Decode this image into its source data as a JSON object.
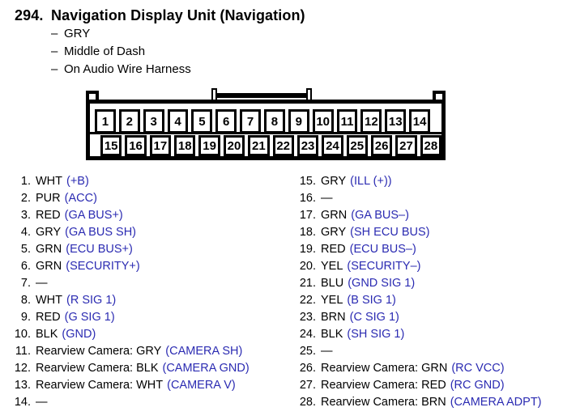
{
  "header": {
    "number": "294.",
    "title": "Navigation Display Unit (Navigation)",
    "bullet": "–",
    "details": [
      "GRY",
      "Middle of Dash",
      "On Audio Wire Harness"
    ]
  },
  "colors": {
    "signal-blue": "#2b2bb2",
    "ink": "#000000",
    "paper": "#ffffff"
  },
  "connector": {
    "top_row": [
      "1",
      "2",
      "3",
      "4",
      "5",
      "6",
      "7",
      "8",
      "9",
      "10",
      "11",
      "12",
      "13",
      "14"
    ],
    "bottom_row": [
      "15",
      "16",
      "17",
      "18",
      "19",
      "20",
      "21",
      "22",
      "23",
      "24",
      "25",
      "26",
      "27",
      "28"
    ]
  },
  "pins": {
    "left": [
      {
        "n": "1.",
        "wire": "WHT",
        "sig": "(+B)"
      },
      {
        "n": "2.",
        "wire": "PUR",
        "sig": "(ACC)"
      },
      {
        "n": "3.",
        "wire": "RED",
        "sig": "(GA BUS+)"
      },
      {
        "n": "4.",
        "wire": "GRY",
        "sig": "(GA BUS SH)"
      },
      {
        "n": "5.",
        "wire": "GRN",
        "sig": "(ECU BUS+)"
      },
      {
        "n": "6.",
        "wire": "GRN",
        "sig": "(SECURITY+)"
      },
      {
        "n": "7.",
        "wire": "—",
        "sig": ""
      },
      {
        "n": "8.",
        "wire": "WHT",
        "sig": "(R SIG 1)"
      },
      {
        "n": "9.",
        "wire": "RED",
        "sig": "(G SIG 1)"
      },
      {
        "n": "10.",
        "wire": "BLK",
        "sig": "(GND)"
      },
      {
        "n": "11.",
        "wire": "Rearview Camera: GRY",
        "sig": "(CAMERA SH)"
      },
      {
        "n": "12.",
        "wire": "Rearview Camera: BLK",
        "sig": "(CAMERA GND)"
      },
      {
        "n": "13.",
        "wire": "Rearview Camera: WHT",
        "sig": "(CAMERA V)"
      },
      {
        "n": "14.",
        "wire": "—",
        "sig": ""
      }
    ],
    "right": [
      {
        "n": "15.",
        "wire": "GRY",
        "sig": "(ILL (+))"
      },
      {
        "n": "16.",
        "wire": "—",
        "sig": ""
      },
      {
        "n": "17.",
        "wire": "GRN",
        "sig": "(GA BUS–)"
      },
      {
        "n": "18.",
        "wire": "GRY",
        "sig": "(SH ECU BUS)"
      },
      {
        "n": "19.",
        "wire": "RED",
        "sig": "(ECU BUS–)"
      },
      {
        "n": "20.",
        "wire": "YEL",
        "sig": "(SECURITY–)"
      },
      {
        "n": "21.",
        "wire": "BLU",
        "sig": "(GND SIG 1)"
      },
      {
        "n": "22.",
        "wire": "YEL",
        "sig": "(B SIG 1)"
      },
      {
        "n": "23.",
        "wire": "BRN",
        "sig": "(C SIG 1)"
      },
      {
        "n": "24.",
        "wire": "BLK",
        "sig": "(SH SIG 1)"
      },
      {
        "n": "25.",
        "wire": "—",
        "sig": ""
      },
      {
        "n": "26.",
        "wire": "Rearview Camera: GRN",
        "sig": "(RC VCC)"
      },
      {
        "n": "27.",
        "wire": "Rearview Camera: RED",
        "sig": "(RC GND)"
      },
      {
        "n": "28.",
        "wire": "Rearview Camera: BRN",
        "sig": "(CAMERA ADPT)"
      }
    ]
  }
}
